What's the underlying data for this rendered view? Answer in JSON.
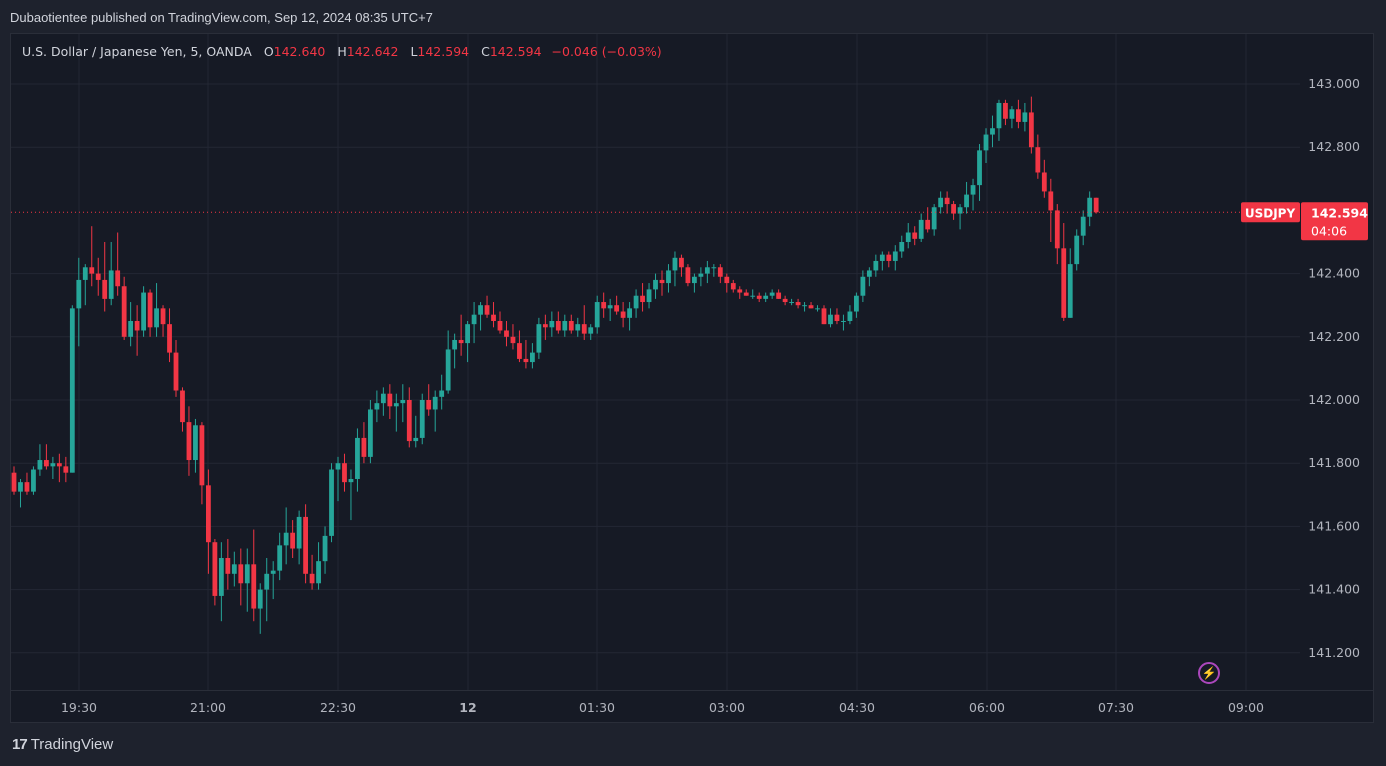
{
  "publisher": "Dubaotientee published on TradingView.com, Sep 12, 2024 08:35 UTC+7",
  "legend": {
    "symbol": "U.S. Dollar / Japanese Yen, 5, OANDA",
    "o_label": "O",
    "o": "142.640",
    "h_label": "H",
    "h": "142.642",
    "l_label": "L",
    "l": "142.594",
    "c_label": "C",
    "c": "142.594",
    "change": "−0.046 (−0.03%)"
  },
  "price_tag": {
    "symbol": "USDJPY",
    "price": "142.594",
    "countdown": "04:06"
  },
  "footer": {
    "brand": "TradingView",
    "icon": "tradingview-logo-icon"
  },
  "colors": {
    "up": "#26a69a",
    "down": "#f23645",
    "background": "#161a25",
    "grid": "#232734"
  },
  "chart_data": {
    "type": "candlestick",
    "symbol": "USDJPY",
    "timeframe": "5",
    "yticks": [
      "143.000",
      "142.800",
      "142.400",
      "142.200",
      "142.000",
      "141.800",
      "141.600",
      "141.400",
      "141.200"
    ],
    "ylim": [
      141.08,
      143.08
    ],
    "xticks": [
      "19:30",
      "21:00",
      "22:30",
      "12",
      "01:30",
      "03:00",
      "04:30",
      "06:00",
      "07:30",
      "09:00"
    ],
    "last_price": 142.594,
    "grid": true,
    "candles": [
      [
        141.77,
        141.79,
        141.7,
        141.71
      ],
      [
        141.71,
        141.75,
        141.66,
        141.74
      ],
      [
        141.74,
        141.77,
        141.7,
        141.71
      ],
      [
        141.71,
        141.79,
        141.7,
        141.78
      ],
      [
        141.78,
        141.86,
        141.76,
        141.81
      ],
      [
        141.81,
        141.86,
        141.78,
        141.79
      ],
      [
        141.79,
        141.82,
        141.75,
        141.8
      ],
      [
        141.8,
        141.83,
        141.74,
        141.79
      ],
      [
        141.79,
        141.82,
        141.74,
        141.77
      ],
      [
        141.77,
        142.3,
        141.77,
        142.29
      ],
      [
        142.29,
        142.45,
        142.17,
        142.38
      ],
      [
        142.38,
        142.43,
        142.3,
        142.42
      ],
      [
        142.42,
        142.55,
        142.36,
        142.4
      ],
      [
        142.4,
        142.45,
        142.33,
        142.38
      ],
      [
        142.38,
        142.5,
        142.28,
        142.32
      ],
      [
        142.32,
        142.5,
        142.3,
        142.41
      ],
      [
        142.41,
        142.53,
        142.33,
        142.36
      ],
      [
        142.36,
        142.39,
        142.19,
        142.2
      ],
      [
        142.2,
        142.31,
        142.17,
        142.25
      ],
      [
        142.25,
        142.3,
        142.14,
        142.22
      ],
      [
        142.22,
        142.36,
        142.2,
        142.34
      ],
      [
        142.34,
        142.35,
        142.2,
        142.23
      ],
      [
        142.23,
        142.37,
        142.2,
        142.29
      ],
      [
        142.29,
        142.3,
        142.2,
        142.24
      ],
      [
        142.24,
        142.29,
        142.12,
        142.15
      ],
      [
        142.15,
        142.19,
        142.01,
        142.03
      ],
      [
        142.03,
        142.04,
        141.9,
        141.93
      ],
      [
        141.93,
        141.98,
        141.76,
        141.81
      ],
      [
        141.81,
        141.94,
        141.77,
        141.92
      ],
      [
        141.92,
        141.93,
        141.67,
        141.73
      ],
      [
        141.73,
        141.78,
        141.45,
        141.55
      ],
      [
        141.55,
        141.56,
        141.35,
        141.38
      ],
      [
        141.38,
        141.55,
        141.3,
        141.5
      ],
      [
        141.5,
        141.56,
        141.4,
        141.45
      ],
      [
        141.45,
        141.52,
        141.41,
        141.48
      ],
      [
        141.48,
        141.53,
        141.35,
        141.42
      ],
      [
        141.42,
        141.53,
        141.33,
        141.48
      ],
      [
        141.48,
        141.59,
        141.3,
        141.34
      ],
      [
        141.34,
        141.42,
        141.26,
        141.4
      ],
      [
        141.4,
        141.5,
        141.3,
        141.45
      ],
      [
        141.45,
        141.49,
        141.37,
        141.46
      ],
      [
        141.46,
        141.58,
        141.43,
        141.54
      ],
      [
        141.54,
        141.66,
        141.48,
        141.58
      ],
      [
        141.58,
        141.62,
        141.5,
        141.53
      ],
      [
        141.53,
        141.65,
        141.48,
        141.63
      ],
      [
        141.63,
        141.67,
        141.42,
        141.45
      ],
      [
        141.45,
        141.51,
        141.4,
        141.42
      ],
      [
        141.42,
        141.55,
        141.4,
        141.49
      ],
      [
        141.49,
        141.6,
        141.45,
        141.57
      ],
      [
        141.57,
        141.8,
        141.55,
        141.78
      ],
      [
        141.78,
        141.82,
        141.68,
        141.8
      ],
      [
        141.8,
        141.83,
        141.71,
        141.74
      ],
      [
        141.74,
        141.78,
        141.62,
        141.75
      ],
      [
        141.75,
        141.91,
        141.71,
        141.88
      ],
      [
        141.88,
        141.93,
        141.8,
        141.82
      ],
      [
        141.82,
        142.0,
        141.8,
        141.97
      ],
      [
        141.97,
        142.03,
        141.93,
        141.99
      ],
      [
        141.99,
        142.04,
        141.95,
        142.02
      ],
      [
        142.02,
        142.05,
        141.94,
        141.98
      ],
      [
        141.98,
        142.02,
        141.9,
        141.99
      ],
      [
        141.99,
        142.05,
        141.93,
        142.0
      ],
      [
        142.0,
        142.04,
        141.85,
        141.87
      ],
      [
        141.87,
        141.95,
        141.85,
        141.88
      ],
      [
        141.88,
        142.02,
        141.86,
        142.0
      ],
      [
        142.0,
        142.05,
        141.95,
        141.97
      ],
      [
        141.97,
        142.03,
        141.9,
        142.01
      ],
      [
        142.01,
        142.08,
        141.97,
        142.03
      ],
      [
        142.03,
        142.22,
        142.02,
        142.16
      ],
      [
        142.16,
        142.21,
        142.1,
        142.19
      ],
      [
        142.19,
        142.27,
        142.14,
        142.18
      ],
      [
        142.18,
        142.25,
        142.12,
        142.24
      ],
      [
        142.24,
        142.31,
        142.18,
        142.27
      ],
      [
        142.27,
        142.31,
        142.22,
        142.3
      ],
      [
        142.3,
        142.33,
        142.26,
        142.27
      ],
      [
        142.27,
        142.31,
        142.23,
        142.25
      ],
      [
        142.25,
        142.28,
        142.21,
        142.22
      ],
      [
        142.22,
        142.25,
        142.17,
        142.2
      ],
      [
        142.2,
        142.24,
        142.16,
        142.18
      ],
      [
        142.18,
        142.22,
        142.12,
        142.13
      ],
      [
        142.13,
        142.19,
        142.1,
        142.12
      ],
      [
        142.12,
        142.18,
        142.1,
        142.15
      ],
      [
        142.15,
        142.26,
        142.13,
        142.24
      ],
      [
        142.24,
        142.27,
        142.19,
        142.23
      ],
      [
        142.23,
        142.28,
        142.2,
        142.25
      ],
      [
        142.25,
        142.28,
        142.21,
        142.22
      ],
      [
        142.22,
        142.27,
        142.2,
        142.25
      ],
      [
        142.25,
        142.27,
        142.21,
        142.22
      ],
      [
        142.22,
        142.26,
        142.2,
        142.24
      ],
      [
        142.24,
        142.3,
        142.19,
        142.21
      ],
      [
        142.21,
        142.24,
        142.19,
        142.23
      ],
      [
        142.23,
        142.33,
        142.21,
        142.31
      ],
      [
        142.31,
        142.34,
        142.26,
        142.29
      ],
      [
        142.29,
        142.32,
        142.25,
        142.3
      ],
      [
        142.3,
        142.33,
        142.27,
        142.28
      ],
      [
        142.28,
        142.31,
        142.23,
        142.26
      ],
      [
        142.26,
        142.31,
        142.22,
        142.29
      ],
      [
        142.29,
        142.35,
        142.26,
        142.33
      ],
      [
        142.33,
        142.37,
        142.28,
        142.31
      ],
      [
        142.31,
        142.37,
        142.29,
        142.35
      ],
      [
        142.35,
        142.4,
        142.32,
        142.38
      ],
      [
        142.38,
        142.41,
        142.33,
        142.37
      ],
      [
        142.37,
        142.43,
        142.34,
        142.41
      ],
      [
        142.41,
        142.47,
        142.36,
        142.45
      ],
      [
        142.45,
        142.46,
        142.39,
        142.42
      ],
      [
        142.42,
        142.43,
        142.36,
        142.37
      ],
      [
        142.37,
        142.4,
        142.34,
        142.39
      ],
      [
        142.39,
        142.42,
        142.36,
        142.4
      ],
      [
        142.4,
        142.44,
        142.37,
        142.42
      ],
      [
        142.42,
        142.43,
        142.39,
        142.42
      ],
      [
        142.42,
        142.43,
        142.37,
        142.39
      ],
      [
        142.39,
        142.4,
        142.34,
        142.37
      ],
      [
        142.37,
        142.38,
        142.34,
        142.35
      ],
      [
        142.35,
        142.36,
        142.32,
        142.34
      ],
      [
        142.34,
        142.35,
        142.33,
        142.33
      ],
      [
        142.33,
        142.35,
        142.32,
        142.33
      ],
      [
        142.33,
        142.34,
        142.31,
        142.32
      ],
      [
        142.32,
        142.34,
        142.31,
        142.33
      ],
      [
        142.33,
        142.35,
        142.32,
        142.34
      ],
      [
        142.34,
        142.35,
        142.32,
        142.32
      ],
      [
        142.32,
        142.33,
        142.3,
        142.31
      ],
      [
        142.31,
        142.32,
        142.3,
        142.31
      ],
      [
        142.31,
        142.32,
        142.29,
        142.3
      ],
      [
        142.3,
        142.31,
        142.28,
        142.3
      ],
      [
        142.3,
        142.31,
        142.29,
        142.29
      ],
      [
        142.29,
        142.3,
        142.28,
        142.29
      ],
      [
        142.29,
        142.3,
        142.24,
        142.24
      ],
      [
        142.24,
        142.29,
        142.23,
        142.27
      ],
      [
        142.27,
        142.29,
        142.24,
        142.25
      ],
      [
        142.25,
        142.27,
        142.22,
        142.25
      ],
      [
        142.25,
        142.3,
        142.24,
        142.28
      ],
      [
        142.28,
        142.34,
        142.26,
        142.33
      ],
      [
        142.33,
        142.41,
        142.31,
        142.39
      ],
      [
        142.39,
        142.42,
        142.36,
        142.41
      ],
      [
        142.41,
        142.46,
        142.39,
        142.44
      ],
      [
        142.44,
        142.47,
        142.41,
        142.46
      ],
      [
        142.46,
        142.47,
        142.42,
        142.44
      ],
      [
        142.44,
        142.49,
        142.41,
        142.47
      ],
      [
        142.47,
        142.52,
        142.45,
        142.5
      ],
      [
        142.5,
        142.56,
        142.48,
        142.53
      ],
      [
        142.53,
        142.55,
        142.49,
        142.51
      ],
      [
        142.51,
        142.59,
        142.5,
        142.57
      ],
      [
        142.57,
        142.61,
        142.53,
        142.54
      ],
      [
        142.54,
        142.62,
        142.52,
        142.61
      ],
      [
        142.61,
        142.66,
        142.59,
        142.64
      ],
      [
        142.64,
        142.66,
        142.59,
        142.62
      ],
      [
        142.62,
        142.63,
        142.57,
        142.59
      ],
      [
        142.59,
        142.62,
        142.54,
        142.61
      ],
      [
        142.61,
        142.69,
        142.59,
        142.65
      ],
      [
        142.65,
        142.7,
        142.6,
        142.68
      ],
      [
        142.68,
        142.81,
        142.63,
        142.79
      ],
      [
        142.79,
        142.86,
        142.75,
        142.84
      ],
      [
        142.84,
        142.9,
        142.8,
        142.86
      ],
      [
        142.86,
        142.95,
        142.82,
        142.94
      ],
      [
        142.94,
        142.95,
        142.87,
        142.89
      ],
      [
        142.89,
        142.93,
        142.86,
        142.92
      ],
      [
        142.92,
        142.95,
        142.86,
        142.88
      ],
      [
        142.88,
        142.94,
        142.85,
        142.91
      ],
      [
        142.91,
        142.96,
        142.78,
        142.8
      ],
      [
        142.8,
        142.84,
        142.7,
        142.72
      ],
      [
        142.72,
        142.76,
        142.64,
        142.66
      ],
      [
        142.66,
        142.7,
        142.5,
        142.6
      ],
      [
        142.6,
        142.62,
        142.43,
        142.48
      ],
      [
        142.48,
        142.56,
        142.25,
        142.26
      ],
      [
        142.26,
        142.48,
        142.26,
        142.43
      ],
      [
        142.43,
        142.54,
        142.41,
        142.52
      ],
      [
        142.52,
        142.6,
        142.49,
        142.58
      ],
      [
        142.58,
        142.66,
        142.55,
        142.64
      ],
      [
        142.64,
        142.64,
        142.59,
        142.594
      ]
    ]
  }
}
